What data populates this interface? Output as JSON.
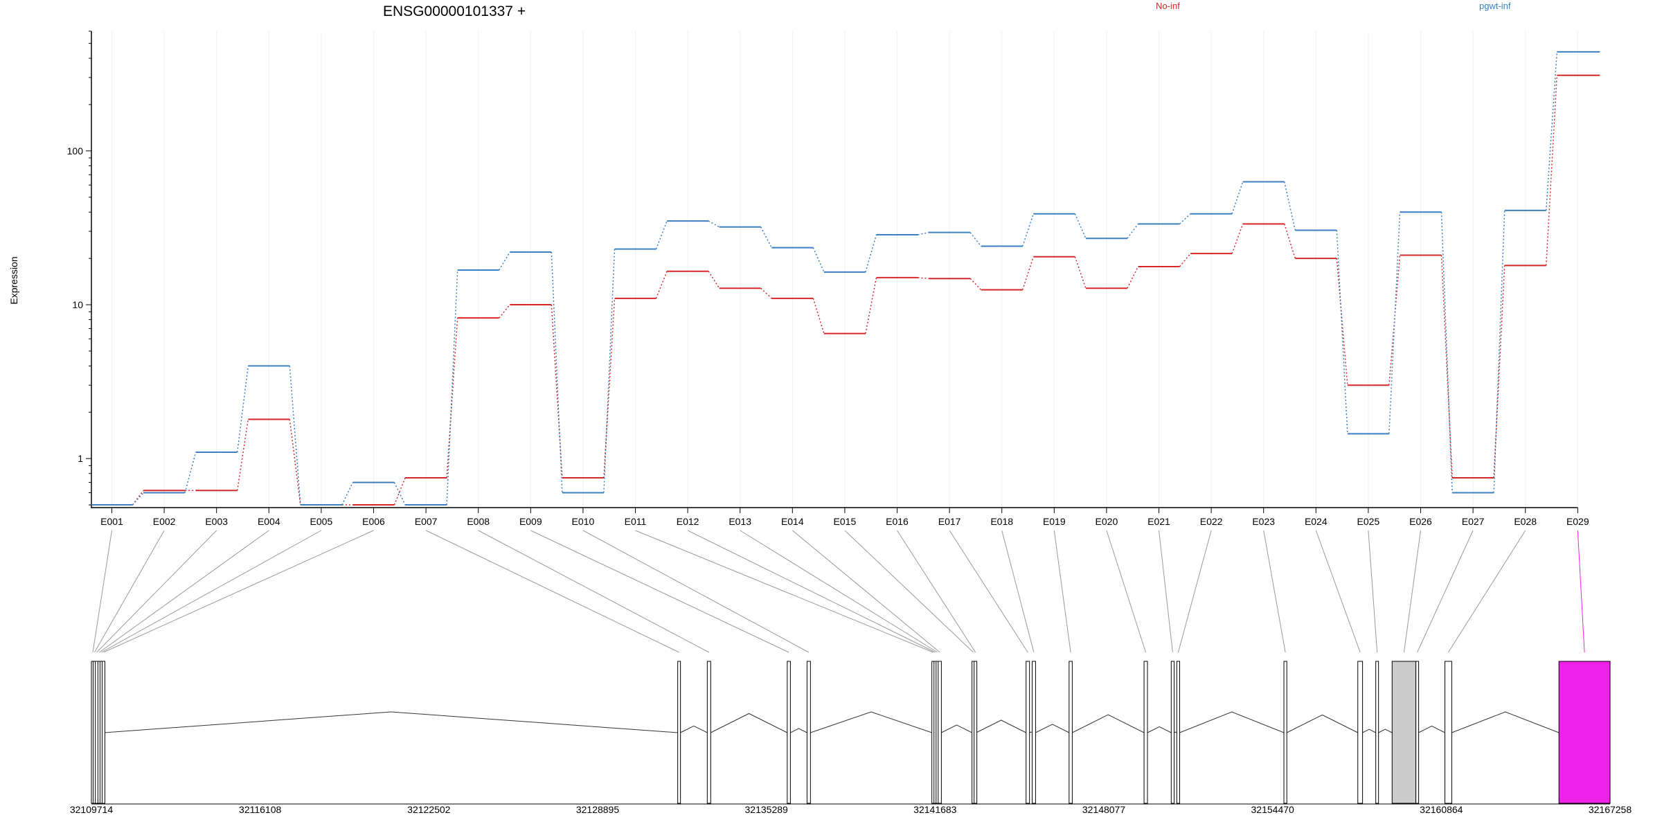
{
  "title": "ENSG00000101337 +",
  "legend": [
    {
      "label": "No-inf",
      "color": "#d62728"
    },
    {
      "label": "pgwt-inf",
      "color": "#3a7fc1"
    }
  ],
  "chart_data": [
    {
      "type": "line",
      "ylabel": "Expression",
      "yscale": "log",
      "ylim": [
        0.48,
        600
      ],
      "y_ticks": [
        {
          "value": 1,
          "label": "1"
        },
        {
          "value": 10,
          "label": "10"
        },
        {
          "value": 100,
          "label": "100"
        }
      ],
      "categories": [
        "E001",
        "E002",
        "E003",
        "E004",
        "E005",
        "E006",
        "E007",
        "E008",
        "E009",
        "E010",
        "E011",
        "E012",
        "E013",
        "E014",
        "E015",
        "E016",
        "E017",
        "E018",
        "E019",
        "E020",
        "E021",
        "E022",
        "E023",
        "E024",
        "E025",
        "E026",
        "E027",
        "E028",
        "E029"
      ],
      "series": [
        {
          "name": "No-inf",
          "color": "#d62728",
          "values": [
            0.5,
            0.62,
            0.62,
            1.8,
            0.5,
            0.5,
            0.75,
            8.2,
            10.0,
            0.75,
            11.0,
            16.5,
            12.8,
            11.0,
            6.5,
            15.0,
            14.8,
            12.5,
            20.5,
            12.8,
            17.7,
            21.5,
            33.5,
            20.0,
            3.0,
            21.0,
            0.75,
            18.0,
            310
          ]
        },
        {
          "name": "pgwt-inf",
          "color": "#3a7fc1",
          "values": [
            0.5,
            0.6,
            1.1,
            4.0,
            0.5,
            0.7,
            0.5,
            16.8,
            22.0,
            0.6,
            23.0,
            35.0,
            32.0,
            23.5,
            16.3,
            28.5,
            29.5,
            24.0,
            39.0,
            27.0,
            33.5,
            39.0,
            63.0,
            30.5,
            1.45,
            40.0,
            0.6,
            41.0,
            440
          ]
        }
      ]
    },
    {
      "type": "gene-model",
      "genomic_range": [
        32109714,
        32167258
      ],
      "x_ticks": [
        "32109714",
        "32116108",
        "32122502",
        "32128895",
        "32135289",
        "32141683",
        "32148077",
        "32154470",
        "32160864",
        "32167258"
      ],
      "highlight_exon": "E029",
      "highlight_color": "#ee22e8",
      "exons": [
        {
          "id": "E001",
          "start": 32109714,
          "end": 32109780,
          "fill": "#ffffff"
        },
        {
          "id": "E002",
          "start": 32109780,
          "end": 32109860,
          "fill": "#ffffff"
        },
        {
          "id": "E003",
          "start": 32109860,
          "end": 32109960,
          "fill": "#ffffff"
        },
        {
          "id": "E004",
          "start": 32109960,
          "end": 32110040,
          "fill": "#ffffff"
        },
        {
          "id": "E005",
          "start": 32110040,
          "end": 32110120,
          "fill": "#ffffff"
        },
        {
          "id": "E006",
          "start": 32110120,
          "end": 32110200,
          "fill": "#ffffff"
        },
        {
          "id": "E007",
          "start": 32131930,
          "end": 32132030,
          "fill": "#ffffff"
        },
        {
          "id": "E008",
          "start": 32133050,
          "end": 32133180,
          "fill": "#ffffff"
        },
        {
          "id": "E009",
          "start": 32136080,
          "end": 32136200,
          "fill": "#ffffff"
        },
        {
          "id": "E010",
          "start": 32136830,
          "end": 32136960,
          "fill": "#ffffff"
        },
        {
          "id": "E011",
          "start": 32141560,
          "end": 32141640,
          "fill": "#ffffff"
        },
        {
          "id": "E012",
          "start": 32141640,
          "end": 32141720,
          "fill": "#ffffff"
        },
        {
          "id": "E013",
          "start": 32141720,
          "end": 32141800,
          "fill": "#ffffff"
        },
        {
          "id": "E014",
          "start": 32141800,
          "end": 32141920,
          "fill": "#ffffff"
        },
        {
          "id": "E015",
          "start": 32143080,
          "end": 32143160,
          "fill": "#ffffff"
        },
        {
          "id": "E016",
          "start": 32143160,
          "end": 32143240,
          "fill": "#ffffff"
        },
        {
          "id": "E017",
          "start": 32145130,
          "end": 32145260,
          "fill": "#ffffff"
        },
        {
          "id": "E018",
          "start": 32145360,
          "end": 32145490,
          "fill": "#ffffff"
        },
        {
          "id": "E019",
          "start": 32146760,
          "end": 32146880,
          "fill": "#ffffff"
        },
        {
          "id": "E020",
          "start": 32149600,
          "end": 32149730,
          "fill": "#ffffff"
        },
        {
          "id": "E021",
          "start": 32150630,
          "end": 32150740,
          "fill": "#ffffff"
        },
        {
          "id": "E022",
          "start": 32150840,
          "end": 32150950,
          "fill": "#ffffff"
        },
        {
          "id": "E023",
          "start": 32154900,
          "end": 32155010,
          "fill": "#ffffff"
        },
        {
          "id": "E024",
          "start": 32157700,
          "end": 32157880,
          "fill": "#ffffff"
        },
        {
          "id": "E025",
          "start": 32158380,
          "end": 32158480,
          "fill": "#ffffff"
        },
        {
          "id": "E026",
          "start": 32159000,
          "end": 32159900,
          "fill": "#cccccc"
        },
        {
          "id": "E027",
          "start": 32159900,
          "end": 32160000,
          "fill": "#ffffff"
        },
        {
          "id": "E028",
          "start": 32161000,
          "end": 32161260,
          "fill": "#ffffff"
        },
        {
          "id": "E029",
          "start": 32165320,
          "end": 32167258,
          "fill": "#ee22e8"
        }
      ]
    }
  ]
}
